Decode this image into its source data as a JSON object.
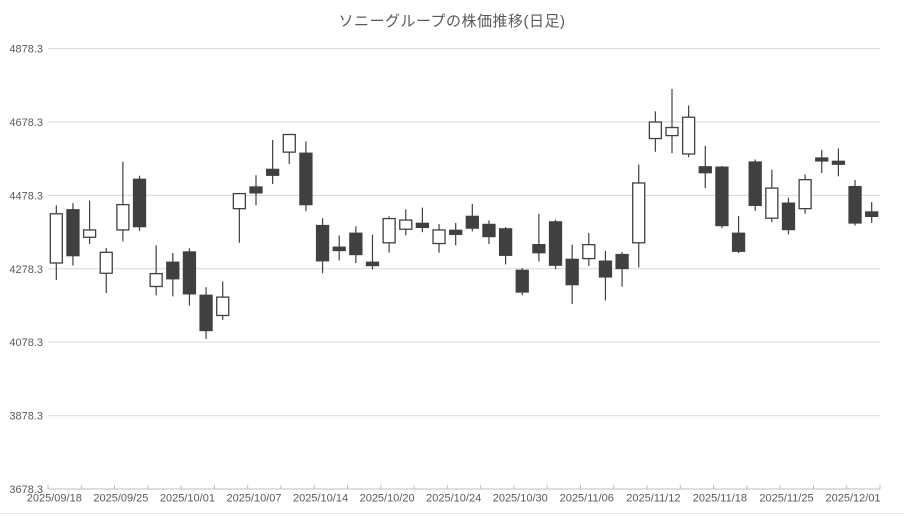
{
  "title": "ソニーグループの株価推移(日足)",
  "colors": {
    "background": "#ffffff",
    "title_text": "#595959",
    "label_text": "#595959",
    "gridline": "#d9d9d9",
    "axis_line": "#bfbfbf",
    "bottom_edge": "#e8e8e8",
    "up_fill": "#ffffff",
    "down_fill": "#404040",
    "candle_outline": "#404040",
    "wick": "#404040"
  },
  "chart_data": {
    "type": "candlestick",
    "title": "ソニーグループの株価推移(日足)",
    "xlabel": "",
    "ylabel": "",
    "grid": true,
    "legend": "none",
    "y_axis": {
      "min": 3678.3,
      "max": 4878.3,
      "tick_interval": 200,
      "tick_labels": [
        "4878.3",
        "4678.3",
        "4478.3",
        "4278.3",
        "4078.3",
        "3878.3",
        "3678.3"
      ]
    },
    "x_axis": {
      "label_every_n_candles": 4,
      "shown_labels": [
        "2025/09/18",
        "2025/09/25",
        "2025/10/01",
        "2025/10/07",
        "2025/10/14",
        "2025/10/20",
        "2025/10/24",
        "2025/10/30",
        "2025/11/06",
        "2025/11/12",
        "2025/11/18",
        "2025/11/25",
        "2025/12/01"
      ],
      "shown_label_indices": [
        0,
        4,
        8,
        12,
        16,
        20,
        24,
        28,
        32,
        36,
        40,
        44,
        48
      ]
    },
    "dates": [
      "2025/09/18",
      "2025/09/19",
      "2025/09/22",
      "2025/09/24",
      "2025/09/25",
      "2025/09/26",
      "2025/09/29",
      "2025/09/30",
      "2025/10/01",
      "2025/10/02",
      "2025/10/03",
      "2025/10/06",
      "2025/10/07",
      "2025/10/08",
      "2025/10/09",
      "2025/10/10",
      "2025/10/14",
      "2025/10/15",
      "2025/10/16",
      "2025/10/17",
      "2025/10/20",
      "2025/10/21",
      "2025/10/22",
      "2025/10/23",
      "2025/10/24",
      "2025/10/27",
      "2025/10/28",
      "2025/10/29",
      "2025/10/30",
      "2025/10/31",
      "2025/11/04",
      "2025/11/05",
      "2025/11/06",
      "2025/11/07",
      "2025/11/10",
      "2025/11/11",
      "2025/11/12",
      "2025/11/13",
      "2025/11/14",
      "2025/11/17",
      "2025/11/18",
      "2025/11/19",
      "2025/11/20",
      "2025/11/21",
      "2025/11/25",
      "2025/11/26",
      "2025/11/27",
      "2025/11/28",
      "2025/12/01",
      "2025/12/02"
    ],
    "ohlc": [
      [
        4294,
        4451,
        4248,
        4428
      ],
      [
        4439,
        4457,
        4287,
        4314
      ],
      [
        4364,
        4464,
        4346,
        4384
      ],
      [
        4266,
        4335,
        4212,
        4323
      ],
      [
        4384,
        4570,
        4353,
        4453
      ],
      [
        4522,
        4532,
        4381,
        4393
      ],
      [
        4230,
        4342,
        4206,
        4265
      ],
      [
        4296,
        4321,
        4203,
        4251
      ],
      [
        4324,
        4334,
        4178,
        4210
      ],
      [
        4206,
        4228,
        4087,
        4110
      ],
      [
        4151,
        4244,
        4139,
        4201
      ],
      [
        4442,
        4485,
        4349,
        4483
      ],
      [
        4501,
        4533,
        4451,
        4485
      ],
      [
        4549,
        4629,
        4509,
        4533
      ],
      [
        4596,
        4645,
        4564,
        4644
      ],
      [
        4593,
        4625,
        4435,
        4453
      ],
      [
        4396,
        4416,
        4266,
        4300
      ],
      [
        4337,
        4369,
        4301,
        4328
      ],
      [
        4375,
        4394,
        4294,
        4317
      ],
      [
        4296,
        4371,
        4276,
        4287
      ],
      [
        4349,
        4421,
        4322,
        4415
      ],
      [
        4386,
        4440,
        4369,
        4411
      ],
      [
        4402,
        4445,
        4378,
        4391
      ],
      [
        4347,
        4400,
        4322,
        4384
      ],
      [
        4383,
        4403,
        4342,
        4372
      ],
      [
        4421,
        4455,
        4380,
        4389
      ],
      [
        4399,
        4410,
        4346,
        4366
      ],
      [
        4387,
        4392,
        4290,
        4315
      ],
      [
        4274,
        4280,
        4206,
        4215
      ],
      [
        4344,
        4428,
        4298,
        4322
      ],
      [
        4406,
        4412,
        4277,
        4288
      ],
      [
        4304,
        4344,
        4182,
        4235
      ],
      [
        4306,
        4376,
        4286,
        4344
      ],
      [
        4299,
        4327,
        4192,
        4256
      ],
      [
        4317,
        4324,
        4229,
        4279
      ],
      [
        4349,
        4562,
        4282,
        4512
      ],
      [
        4633,
        4707,
        4597,
        4678
      ],
      [
        4641,
        4768,
        4593,
        4663
      ],
      [
        4591,
        4723,
        4582,
        4691
      ],
      [
        4556,
        4613,
        4498,
        4540
      ],
      [
        4555,
        4558,
        4389,
        4396
      ],
      [
        4375,
        4422,
        4321,
        4326
      ],
      [
        4569,
        4576,
        4436,
        4451
      ],
      [
        4416,
        4548,
        4405,
        4498
      ],
      [
        4457,
        4472,
        4372,
        4385
      ],
      [
        4442,
        4535,
        4428,
        4521
      ],
      [
        4580,
        4602,
        4539,
        4572
      ],
      [
        4571,
        4606,
        4530,
        4563
      ],
      [
        4502,
        4520,
        4396,
        4403
      ],
      [
        4433,
        4460,
        4403,
        4421
      ]
    ]
  }
}
